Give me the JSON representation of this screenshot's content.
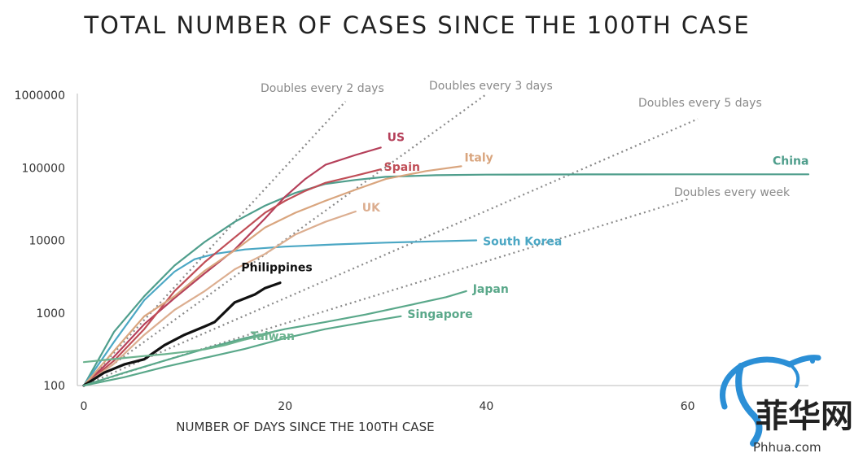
{
  "chart_data": {
    "type": "line",
    "title": "TOTAL NUMBER OF CASES SINCE THE 100TH CASE",
    "xlabel": "NUMBER OF DAYS SINCE THE 100TH CASE",
    "ylabel": "",
    "yscale": "log",
    "xlim": [
      0,
      72
    ],
    "ylim": [
      100,
      1000000
    ],
    "x_ticks": [
      "0",
      "20",
      "40",
      "60"
    ],
    "y_ticks": [
      "100",
      "1000",
      "10000",
      "100000",
      "1000000"
    ],
    "grid": false,
    "legend": "inline labels at line ends",
    "reference_lines": [
      {
        "name": "Doubles every 2 days",
        "doubling_days": 2,
        "x": [
          0,
          26
        ],
        "y": [
          100,
          819200
        ]
      },
      {
        "name": "Doubles every 3 days",
        "doubling_days": 3,
        "x": [
          0,
          40
        ],
        "y": [
          100,
          1032000
        ]
      },
      {
        "name": "Doubles every 5 days",
        "doubling_days": 5,
        "x": [
          0,
          61
        ],
        "y": [
          100,
          470000
        ]
      },
      {
        "name": "Doubles every week",
        "doubling_days": 7,
        "x": [
          0,
          60
        ],
        "y": [
          100,
          37000
        ]
      }
    ],
    "series": [
      {
        "name": "China",
        "color": "#4f9e8c",
        "x": [
          0,
          3,
          6,
          9,
          12,
          15,
          18,
          21,
          24,
          27,
          30,
          35,
          40,
          50,
          60,
          72
        ],
        "y": [
          100,
          550,
          1700,
          4500,
          9500,
          18000,
          30000,
          45000,
          60000,
          68000,
          75000,
          79000,
          80500,
          81000,
          81200,
          81300
        ]
      },
      {
        "name": "South Korea",
        "color": "#4ba7c4",
        "x": [
          0,
          3,
          6,
          9,
          11,
          13,
          16,
          20,
          25,
          30,
          35,
          39
        ],
        "y": [
          100,
          400,
          1500,
          3700,
          5500,
          6500,
          7500,
          8200,
          8800,
          9300,
          9700,
          10000
        ]
      },
      {
        "name": "US",
        "color": "#b5405a",
        "x": [
          0,
          3,
          6,
          9,
          12,
          15,
          18,
          20,
          22,
          24,
          27,
          29.5
        ],
        "y": [
          100,
          250,
          700,
          1600,
          3500,
          7500,
          20000,
          40000,
          70000,
          110000,
          150000,
          190000
        ]
      },
      {
        "name": "Spain",
        "color": "#c04e57",
        "x": [
          0,
          3,
          6,
          9,
          12,
          15,
          18,
          20,
          22,
          24,
          27,
          29.5
        ],
        "y": [
          100,
          220,
          600,
          2000,
          5000,
          11000,
          24000,
          35000,
          48000,
          62000,
          78000,
          95000
        ]
      },
      {
        "name": "Italy",
        "color": "#d9a57e",
        "x": [
          0,
          3,
          6,
          9,
          12,
          15,
          18,
          21,
          24,
          27,
          30,
          34,
          37.5
        ],
        "y": [
          100,
          300,
          900,
          1700,
          3800,
          7300,
          15000,
          24000,
          35000,
          50000,
          70000,
          90000,
          105000
        ]
      },
      {
        "name": "UK",
        "color": "#dcae90",
        "x": [
          0,
          3,
          6,
          9,
          12,
          15,
          18,
          21,
          24,
          27
        ],
        "y": [
          100,
          200,
          500,
          1100,
          2000,
          4000,
          6500,
          12000,
          18000,
          25000
        ]
      },
      {
        "name": "Philippines",
        "color": "#111111",
        "x": [
          0,
          2,
          4,
          6,
          8,
          10,
          12,
          13,
          15,
          17,
          18,
          19.5
        ],
        "y": [
          100,
          150,
          195,
          230,
          360,
          500,
          650,
          750,
          1400,
          1800,
          2200,
          2600
        ]
      },
      {
        "name": "Japan",
        "color": "#5aa88a",
        "x": [
          0,
          4,
          8,
          12,
          16,
          20,
          24,
          28,
          32,
          36,
          38
        ],
        "y": [
          100,
          150,
          220,
          320,
          450,
          600,
          750,
          950,
          1250,
          1650,
          2000
        ]
      },
      {
        "name": "Singapore",
        "color": "#5aa88a",
        "x": [
          0,
          4,
          8,
          12,
          16,
          20,
          24,
          28,
          31.5
        ],
        "y": [
          100,
          130,
          180,
          240,
          320,
          450,
          600,
          750,
          900
        ]
      },
      {
        "name": "Taiwan",
        "color": "#6cb38f",
        "x": [
          0,
          2,
          4,
          6,
          8,
          10,
          12,
          14,
          16,
          18,
          19
        ],
        "y": [
          210,
          225,
          240,
          255,
          270,
          290,
          315,
          360,
          430,
          500,
          560
        ]
      }
    ],
    "labels": [
      {
        "name": "US",
        "x": 29.5,
        "y": 190000
      },
      {
        "name": "Spain",
        "x": 29.5,
        "y": 95000
      },
      {
        "name": "Italy",
        "x": 37.5,
        "y": 105000
      },
      {
        "name": "China",
        "x": 72,
        "y": 81300
      },
      {
        "name": "UK",
        "x": 27,
        "y": 25000
      },
      {
        "name": "South Korea",
        "x": 39,
        "y": 10000
      },
      {
        "name": "Philippines",
        "x": 19.5,
        "y": 2600
      },
      {
        "name": "Japan",
        "x": 38,
        "y": 2000
      },
      {
        "name": "Singapore",
        "x": 31.5,
        "y": 900
      },
      {
        "name": "Taiwan",
        "x": 19,
        "y": 560
      }
    ]
  },
  "watermark": {
    "text": "菲华网",
    "url": "Phhua.com"
  }
}
